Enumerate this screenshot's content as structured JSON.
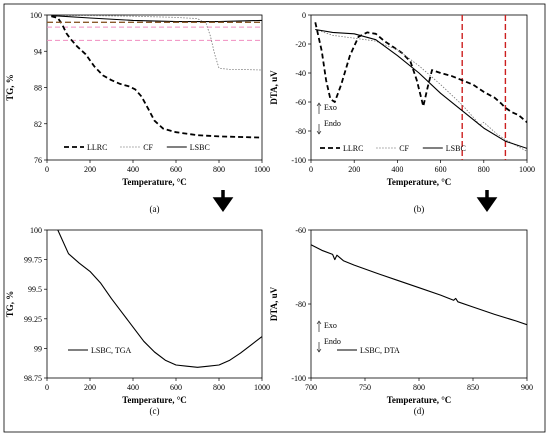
{
  "chart_data": [
    {
      "panel": "(a)",
      "type": "line",
      "xlabel": "Temperature, °C",
      "ylabel": "TG, %",
      "xlim": [
        0,
        1000
      ],
      "ylim": [
        76,
        100
      ],
      "xticks": [
        0,
        200,
        400,
        600,
        800,
        1000
      ],
      "yticks": [
        76,
        82,
        88,
        94,
        100
      ],
      "legend_position": "bottom",
      "series": [
        {
          "name": "LLRC",
          "style": "bold-dash",
          "color": "#000000",
          "x": [
            20,
            50,
            70,
            90,
            110,
            140,
            180,
            220,
            260,
            300,
            340,
            380,
            410,
            440,
            470,
            500,
            540,
            600,
            700,
            800,
            900,
            1000
          ],
          "y": [
            99.8,
            99.5,
            98.5,
            97,
            96,
            94.8,
            93.5,
            91.5,
            90,
            89.2,
            88.6,
            88.2,
            87.7,
            86.5,
            84.5,
            82.5,
            81.2,
            80.6,
            80.1,
            79.9,
            79.8,
            79.7
          ]
        },
        {
          "name": "CF",
          "style": "thin-dot",
          "color": "#777777",
          "x": [
            20,
            200,
            400,
            600,
            700,
            740,
            760,
            780,
            800,
            850,
            900,
            1000
          ],
          "y": [
            99.9,
            99.9,
            99.8,
            99.6,
            99.4,
            98.6,
            96.5,
            93.5,
            91.2,
            91.0,
            91.0,
            90.9
          ]
        },
        {
          "name": "LSBC",
          "style": "solid",
          "color": "#000000",
          "x": [
            20,
            200,
            400,
            600,
            800,
            1000
          ],
          "y": [
            99.9,
            99.5,
            99.1,
            98.9,
            98.9,
            99.1
          ]
        },
        {
          "name": "",
          "style": "brown-dash",
          "color": "#8B5A2B",
          "x": [
            0,
            1000
          ],
          "y": [
            98.8,
            98.8
          ]
        }
      ],
      "reference_lines": [
        {
          "axis": "y",
          "value": 95.8,
          "style": "pink-dash",
          "color": "#f08fc0"
        },
        {
          "axis": "y",
          "value": 98.0,
          "style": "pink-dash",
          "color": "#f08fc0"
        }
      ]
    },
    {
      "panel": "(b)",
      "type": "line",
      "xlabel": "Temperature, °C",
      "ylabel": "DTA, uV",
      "xlim": [
        0,
        1000
      ],
      "ylim": [
        -100,
        0
      ],
      "xticks": [
        0,
        200,
        400,
        600,
        800,
        1000
      ],
      "yticks": [
        -100,
        -80,
        -60,
        -40,
        -20,
        0
      ],
      "legend_position": "bottom",
      "annotations": [
        "Exo",
        "Endo"
      ],
      "series": [
        {
          "name": "LLRC",
          "style": "bold-dash",
          "color": "#000000",
          "x": [
            20,
            50,
            70,
            90,
            110,
            140,
            180,
            220,
            260,
            300,
            340,
            380,
            420,
            460,
            490,
            520,
            540,
            560,
            600,
            650,
            700,
            750,
            800,
            850,
            880,
            900,
            930,
            960,
            1000
          ],
          "y": [
            -5,
            -25,
            -45,
            -58,
            -60,
            -48,
            -28,
            -15,
            -12,
            -13,
            -18,
            -22,
            -26,
            -32,
            -45,
            -63,
            -50,
            -38,
            -40,
            -42,
            -45,
            -48,
            -53,
            -57,
            -61,
            -64,
            -67,
            -69,
            -74
          ]
        },
        {
          "name": "CF",
          "style": "thin-dot",
          "color": "#777777",
          "x": [
            20,
            100,
            200,
            300,
            400,
            500,
            600,
            700,
            760,
            780,
            800,
            830,
            860,
            900,
            950,
            1000
          ],
          "y": [
            -10,
            -14,
            -16,
            -18,
            -24,
            -35,
            -48,
            -62,
            -72,
            -76,
            -74,
            -78,
            -82,
            -86,
            -90,
            -94
          ]
        },
        {
          "name": "LSBC",
          "style": "solid",
          "color": "#000000",
          "x": [
            20,
            100,
            200,
            300,
            400,
            500,
            600,
            700,
            800,
            900,
            1000
          ],
          "y": [
            -10,
            -12,
            -13,
            -17,
            -28,
            -40,
            -54,
            -66,
            -78,
            -87,
            -92
          ]
        }
      ],
      "reference_lines": [
        {
          "axis": "x",
          "value": 700,
          "style": "red-dash",
          "color": "#cc1f1f"
        },
        {
          "axis": "x",
          "value": 900,
          "style": "red-dash",
          "color": "#cc1f1f"
        }
      ]
    },
    {
      "panel": "(c)",
      "type": "line",
      "xlabel": "Temperature, °C",
      "ylabel": "TG, %",
      "xlim": [
        0,
        1000
      ],
      "ylim": [
        98.75,
        100
      ],
      "xticks": [
        0,
        200,
        400,
        600,
        800,
        1000
      ],
      "yticks": [
        98.75,
        99,
        99.25,
        99.5,
        99.75,
        100
      ],
      "legend_position": "bottom-left",
      "series": [
        {
          "name": "LSBC, TGA",
          "style": "solid",
          "color": "#000000",
          "x": [
            50,
            100,
            150,
            200,
            250,
            300,
            350,
            400,
            450,
            500,
            550,
            600,
            650,
            700,
            750,
            800,
            850,
            900,
            950,
            1000
          ],
          "y": [
            100,
            99.8,
            99.72,
            99.65,
            99.55,
            99.42,
            99.3,
            99.18,
            99.06,
            98.97,
            98.9,
            98.86,
            98.85,
            98.84,
            98.85,
            98.86,
            98.9,
            98.96,
            99.03,
            99.1
          ]
        }
      ]
    },
    {
      "panel": "(d)",
      "type": "line",
      "xlabel": "Temperature, °C",
      "ylabel": "DTA, uV",
      "xlim": [
        700,
        900
      ],
      "ylim": [
        -100,
        -60
      ],
      "xticks": [
        700,
        750,
        800,
        850,
        900
      ],
      "yticks": [
        -100,
        -80,
        -60
      ],
      "legend_position": "bottom-left",
      "annotations": [
        "Exo",
        "Endo"
      ],
      "series": [
        {
          "name": "LSBC, DTA",
          "style": "solid",
          "color": "#000000",
          "x": [
            700,
            710,
            720,
            722,
            724,
            730,
            740,
            760,
            780,
            800,
            820,
            832,
            834,
            836,
            850,
            870,
            890,
            900
          ],
          "y": [
            -64,
            -65.5,
            -66.6,
            -68,
            -66.8,
            -68.3,
            -69.5,
            -71.6,
            -73.6,
            -75.6,
            -77.6,
            -79,
            -78.5,
            -79.4,
            -80.8,
            -82.8,
            -84.6,
            -85.6
          ]
        }
      ]
    }
  ]
}
